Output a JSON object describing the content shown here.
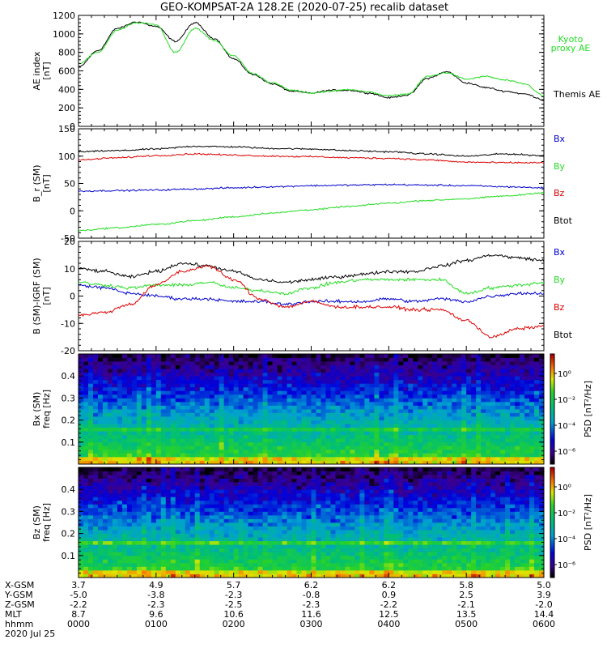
{
  "title": "GEO-KOMPSAT-2A 128.2E (2020-07-25) recalib dataset",
  "colors": {
    "black": "#000000",
    "red": "#dd0000",
    "green": "#22dd22",
    "blue": "#0000cc",
    "kyoto": "#22dd22"
  },
  "time_axis": {
    "start_hhmm": "0000",
    "end_hhmm": "0600"
  },
  "chart_data": [
    {
      "type": "line",
      "ylabel": "AE index\n[nT]",
      "ylim": [
        0,
        1200
      ],
      "yticks": [
        0,
        200,
        400,
        600,
        800,
        1000,
        1200
      ],
      "x": [
        "0000",
        "0015",
        "0030",
        "0045",
        "0100",
        "0115",
        "0130",
        "0145",
        "0200",
        "0215",
        "0230",
        "0245",
        "0300",
        "0315",
        "0330",
        "0345",
        "0400",
        "0415",
        "0430",
        "0445",
        "0500",
        "0515",
        "0530",
        "0545",
        "0600"
      ],
      "series": [
        {
          "name": "Themis AE",
          "color": "#000000",
          "values": [
            640,
            820,
            1060,
            1130,
            1080,
            920,
            1120,
            950,
            730,
            560,
            460,
            380,
            360,
            390,
            390,
            360,
            310,
            340,
            520,
            590,
            470,
            420,
            380,
            350,
            290
          ]
        },
        {
          "name": "Kyoto\nproxy AE",
          "color": "#22dd22",
          "values": [
            680,
            800,
            1040,
            1120,
            1100,
            800,
            1060,
            930,
            760,
            570,
            470,
            390,
            360,
            380,
            400,
            370,
            330,
            350,
            540,
            580,
            510,
            540,
            500,
            460,
            330
          ]
        }
      ],
      "legend": [
        "Kyoto\nproxy AE",
        "Themis AE"
      ]
    },
    {
      "type": "line",
      "ylabel": "B_r (SM)\n[nT]",
      "ylim": [
        -50,
        150
      ],
      "yticks": [
        -50,
        0,
        50,
        100,
        150
      ],
      "x": [
        "0000",
        "0030",
        "0100",
        "0130",
        "0200",
        "0230",
        "0300",
        "0330",
        "0400",
        "0430",
        "0500",
        "0530",
        "0600"
      ],
      "series": [
        {
          "name": "Btot",
          "color": "#000000",
          "values": [
            108,
            110,
            113,
            118,
            117,
            114,
            113,
            110,
            108,
            104,
            100,
            104,
            101
          ]
        },
        {
          "name": "Bx",
          "color": "#0000cc",
          "values": [
            36,
            37,
            38,
            40,
            42,
            44,
            46,
            47,
            48,
            47,
            46,
            44,
            42
          ]
        },
        {
          "name": "By",
          "color": "#22dd22",
          "values": [
            -36,
            -31,
            -25,
            -18,
            -11,
            -4,
            2,
            8,
            14,
            19,
            22,
            27,
            33
          ]
        },
        {
          "name": "Bz",
          "color": "#dd0000",
          "values": [
            93,
            97,
            101,
            104,
            102,
            100,
            99,
            97,
            96,
            93,
            89,
            88,
            88
          ]
        }
      ],
      "legend": [
        "Bx",
        "By",
        "Bz",
        "Btot"
      ]
    },
    {
      "type": "line",
      "ylabel": "B (SM)-IGRF (SM)\n[nT]",
      "ylim": [
        -20,
        20
      ],
      "yticks": [
        -20,
        -10,
        0,
        10,
        20
      ],
      "x": [
        "0000",
        "0020",
        "0040",
        "0100",
        "0120",
        "0140",
        "0200",
        "0220",
        "0240",
        "0300",
        "0320",
        "0340",
        "0400",
        "0420",
        "0440",
        "0500",
        "0520",
        "0540",
        "0600"
      ],
      "series": [
        {
          "name": "Btot",
          "color": "#000000",
          "values": [
            10,
            9,
            7,
            9,
            12,
            11,
            9,
            6,
            5,
            6,
            7,
            8,
            9,
            9,
            11,
            13,
            15,
            14,
            13
          ]
        },
        {
          "name": "Bx",
          "color": "#0000cc",
          "values": [
            4,
            3,
            1,
            0,
            -1,
            -1,
            -2,
            -2,
            -3,
            -2,
            -2,
            -2,
            -1,
            -2,
            -1,
            -2,
            0,
            1,
            1
          ]
        },
        {
          "name": "By",
          "color": "#22dd22",
          "values": [
            5,
            4,
            3,
            4,
            4,
            5,
            3,
            2,
            1,
            3,
            5,
            6,
            6,
            6,
            6,
            1,
            3,
            4,
            5
          ]
        },
        {
          "name": "Bz",
          "color": "#dd0000",
          "values": [
            -7,
            -6,
            -3,
            4,
            9,
            11,
            6,
            -1,
            -4,
            -2,
            -4,
            -4,
            -4,
            -5,
            -5,
            -9,
            -15,
            -12,
            -11
          ]
        }
      ],
      "legend": [
        "Bx",
        "By",
        "Bz",
        "Btot"
      ]
    },
    {
      "type": "heatmap",
      "ylabel": "Bx (SM)\nfreq [Hz]",
      "ylim": [
        0,
        0.5
      ],
      "yticks": [
        0.1,
        0.2,
        0.3,
        0.4
      ],
      "colorbar_label": "PSD [nT²/Hz]",
      "colorbar_ticks": [
        "10⁰",
        "10⁻²",
        "10⁻⁴",
        "10⁻⁶"
      ],
      "colorbar_exponents": [
        0,
        -2,
        -4,
        -6
      ],
      "crange_log10": [
        -7,
        1.5
      ]
    },
    {
      "type": "heatmap",
      "ylabel": "Bz (SM)\nfreq [Hz]",
      "ylim": [
        0,
        0.5
      ],
      "yticks": [
        0.1,
        0.2,
        0.3,
        0.4
      ],
      "colorbar_label": "PSD [nT²/Hz]",
      "colorbar_ticks": [
        "10⁰",
        "10⁻²",
        "10⁻⁴",
        "10⁻⁶"
      ],
      "colorbar_exponents": [
        0,
        -2,
        -4,
        -6
      ],
      "crange_log10": [
        -7,
        1.5
      ]
    }
  ],
  "ephemeris": {
    "labels": [
      "X-GSM",
      "Y-GSM",
      "Z-GSM",
      "MLT",
      "hhmm"
    ],
    "date": "2020 Jul 25",
    "columns": [
      {
        "x": "3.7",
        "y": "-5.0",
        "z": "-2.2",
        "mlt": "8.7",
        "hhmm": "0000"
      },
      {
        "x": "4.9",
        "y": "-3.8",
        "z": "-2.3",
        "mlt": "9.6",
        "hhmm": "0100"
      },
      {
        "x": "5.7",
        "y": "-2.3",
        "z": "-2.5",
        "mlt": "10.6",
        "hhmm": "0200"
      },
      {
        "x": "6.2",
        "y": "-0.8",
        "z": "-2.3",
        "mlt": "11.6",
        "hhmm": "0300"
      },
      {
        "x": "6.2",
        "y": "0.9",
        "z": "-2.2",
        "mlt": "12.5",
        "hhmm": "0400"
      },
      {
        "x": "5.8",
        "y": "2.5",
        "z": "-2.1",
        "mlt": "13.5",
        "hhmm": "0500"
      },
      {
        "x": "5.0",
        "y": "3.9",
        "z": "-2.0",
        "mlt": "14.4",
        "hhmm": "0600"
      }
    ]
  }
}
